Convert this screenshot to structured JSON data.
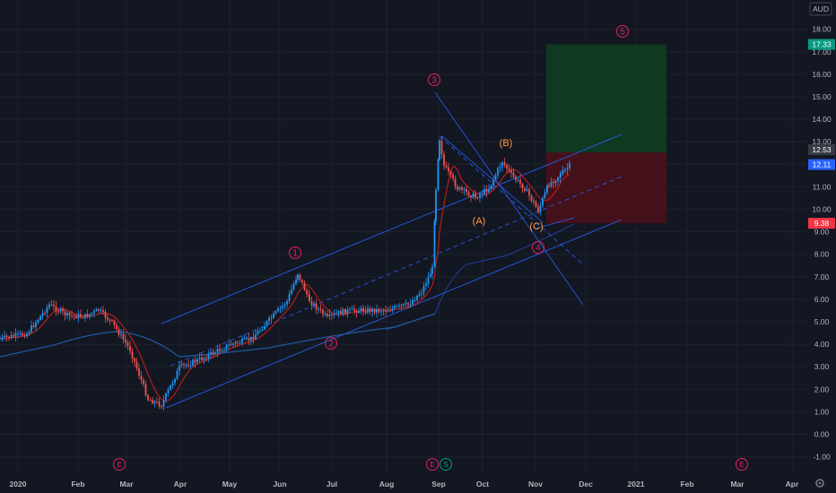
{
  "currency": "AUD",
  "colors": {
    "background": "#131722",
    "grid": "#1e222d",
    "candle_up": "#2196f3",
    "candle_down": "#ef5350",
    "ma_fast": "#b71c1c",
    "ma_slow": "#1e5aa0",
    "channel": "#2962ff",
    "wave_red": "#e91e63",
    "wave_orange": "#ff9b3d",
    "target_zone": "#0f3d21",
    "stop_zone": "#4a1119",
    "tag_green": "#089981",
    "tag_red": "#f23645",
    "tag_blue": "#2962ff",
    "tag_gray": "#363a45"
  },
  "chart_data": {
    "type": "candlestick",
    "ylim": [
      -1.5,
      18.8
    ],
    "y_ticks": [
      "18.00",
      "17.00",
      "16.00",
      "15.00",
      "14.00",
      "13.00",
      "12.00",
      "11.00",
      "10.00",
      "9.00",
      "8.00",
      "7.00",
      "6.00",
      "5.00",
      "4.00",
      "3.00",
      "2.00",
      "1.00",
      "0.00",
      "-1.00"
    ],
    "y_tick_values": [
      18,
      17,
      16,
      15,
      14,
      13,
      12,
      11,
      10,
      9,
      8,
      7,
      6,
      5,
      4,
      3,
      2,
      1,
      0,
      -1
    ],
    "x_ticks": [
      "2020",
      "Feb",
      "Mar",
      "Apr",
      "May",
      "Jun",
      "Jul",
      "Aug",
      "Sep",
      "Oct",
      "Nov",
      "Dec",
      "2021",
      "Feb",
      "Mar",
      "Apr"
    ],
    "price_tags": [
      {
        "label": "17.33",
        "value": 17.33,
        "kind": "green"
      },
      {
        "label": "12.53",
        "value": 12.53,
        "kind": "gray"
      },
      {
        "label": "12.11",
        "value": 12.11,
        "kind": "blue"
      },
      {
        "label": "9.38",
        "value": 9.38,
        "kind": "red"
      }
    ],
    "target_zone": {
      "top": 17.33,
      "bottom": 12.53
    },
    "stop_zone": {
      "top": 12.53,
      "bottom": 9.38
    },
    "waves_primary": [
      {
        "label": "1",
        "value": 8.0
      },
      {
        "label": "2",
        "value": 4.0
      },
      {
        "label": "3",
        "value": 16.0
      },
      {
        "label": "4",
        "value": 8.3
      },
      {
        "label": "5",
        "value": 18.0
      }
    ],
    "waves_corrective": [
      {
        "label": "(A)",
        "value": 9.5
      },
      {
        "label": "(B)",
        "value": 13.0
      },
      {
        "label": "(C)",
        "value": 9.2
      }
    ],
    "events": [
      "E",
      "E",
      "S",
      "E"
    ]
  }
}
